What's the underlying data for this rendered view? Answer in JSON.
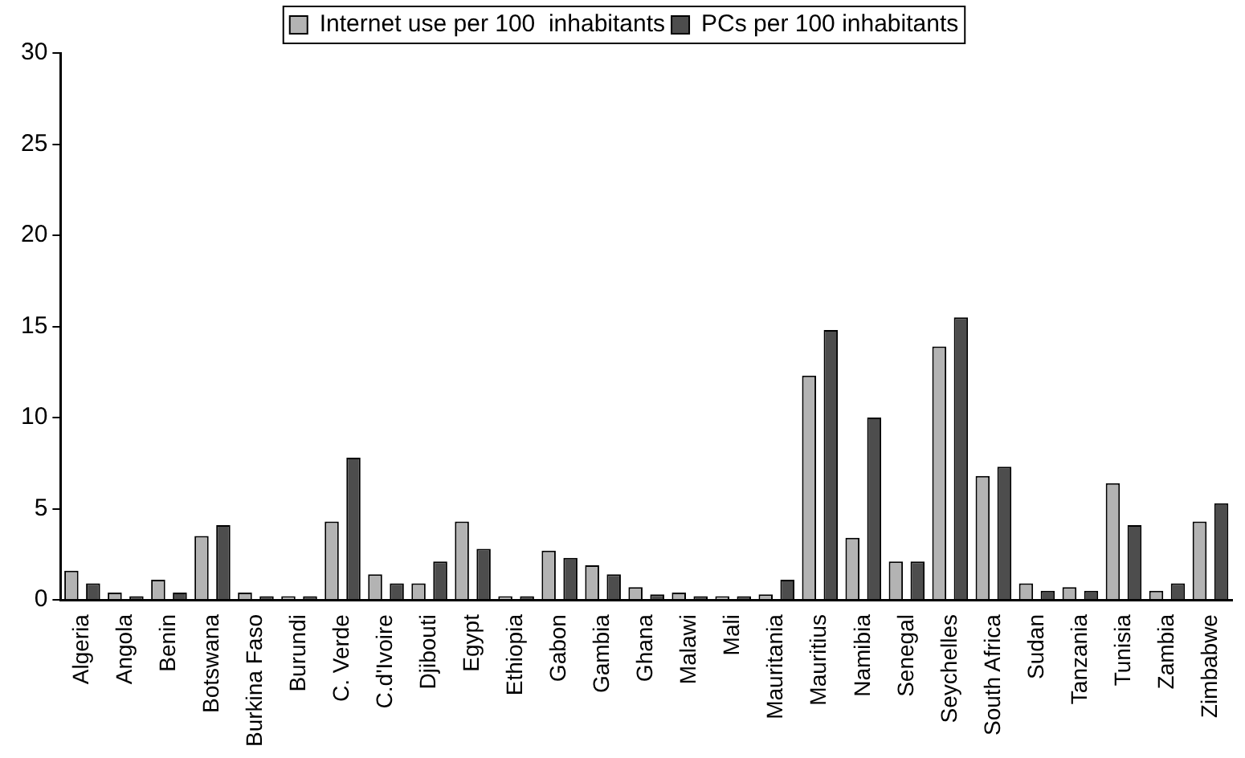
{
  "chart_data": {
    "type": "bar",
    "categories": [
      "Algeria",
      "Angola",
      "Benin",
      "Botswana",
      "Burkina Faso",
      "Burundi",
      "C. Verde",
      "C.d'Ivoire",
      "Djibouti",
      "Egypt",
      "Ethiopia",
      "Gabon",
      "Gambia",
      "Ghana",
      "Malawi",
      "Mali",
      "Mauritania",
      "Mauritius",
      "Namibia",
      "Senegal",
      "Seychelles",
      "South Africa",
      "Sudan",
      "Tanzania",
      "Tunisia",
      "Zambia",
      "Zimbabwe"
    ],
    "series": [
      {
        "name": "Internet use per 100  inhabitants",
        "color": "#b3b3b3",
        "values": [
          1.6,
          0.4,
          1.1,
          3.5,
          0.4,
          0.2,
          4.3,
          1.4,
          0.9,
          4.3,
          0.2,
          2.7,
          1.9,
          0.7,
          0.4,
          0.2,
          0.3,
          12.3,
          3.4,
          2.1,
          13.9,
          6.8,
          0.9,
          0.7,
          6.4,
          0.5,
          4.3
        ]
      },
      {
        "name": "PCs per 100 inhabitants",
        "color": "#4d4d4d",
        "values": [
          0.9,
          0.2,
          0.4,
          4.1,
          0.2,
          0.2,
          7.8,
          0.9,
          2.1,
          2.8,
          0.2,
          2.3,
          1.4,
          0.3,
          0.2,
          0.2,
          1.1,
          14.8,
          10.0,
          2.1,
          15.5,
          7.3,
          0.5,
          0.5,
          4.1,
          0.9,
          5.3
        ]
      }
    ],
    "ylim": [
      0,
      30
    ],
    "yticks": [
      0,
      5,
      10,
      15,
      20,
      25,
      30
    ],
    "grid": false,
    "legend": "top"
  }
}
